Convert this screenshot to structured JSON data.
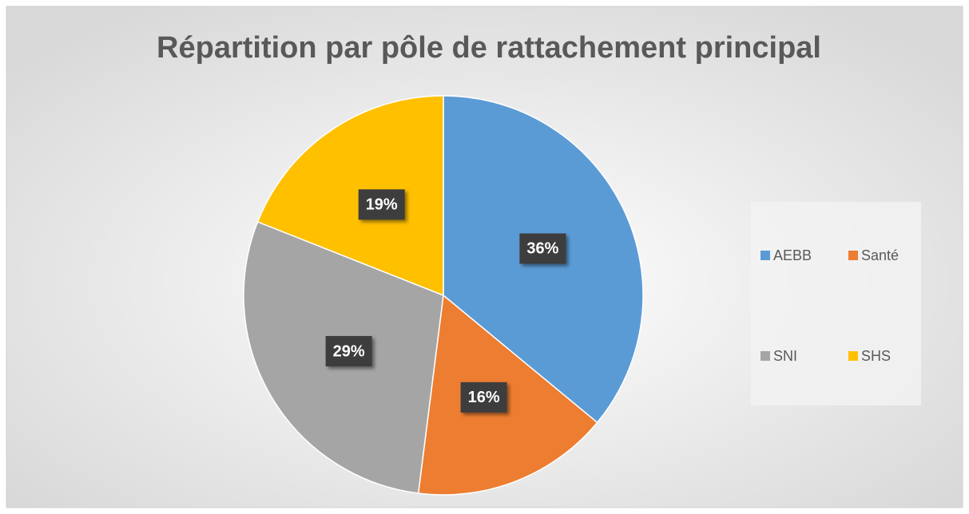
{
  "chart_data": {
    "type": "pie",
    "title": "Répartition par pôle de rattachement principal",
    "categories": [
      "AEBB",
      "Santé",
      "SNI",
      "SHS"
    ],
    "values": [
      36,
      16,
      29,
      19
    ],
    "value_labels": [
      "36%",
      "16%",
      "29%",
      "19%"
    ],
    "colors": [
      "#5b9bd5",
      "#ed7d31",
      "#a5a5a5",
      "#ffc000"
    ],
    "legend": "right"
  }
}
